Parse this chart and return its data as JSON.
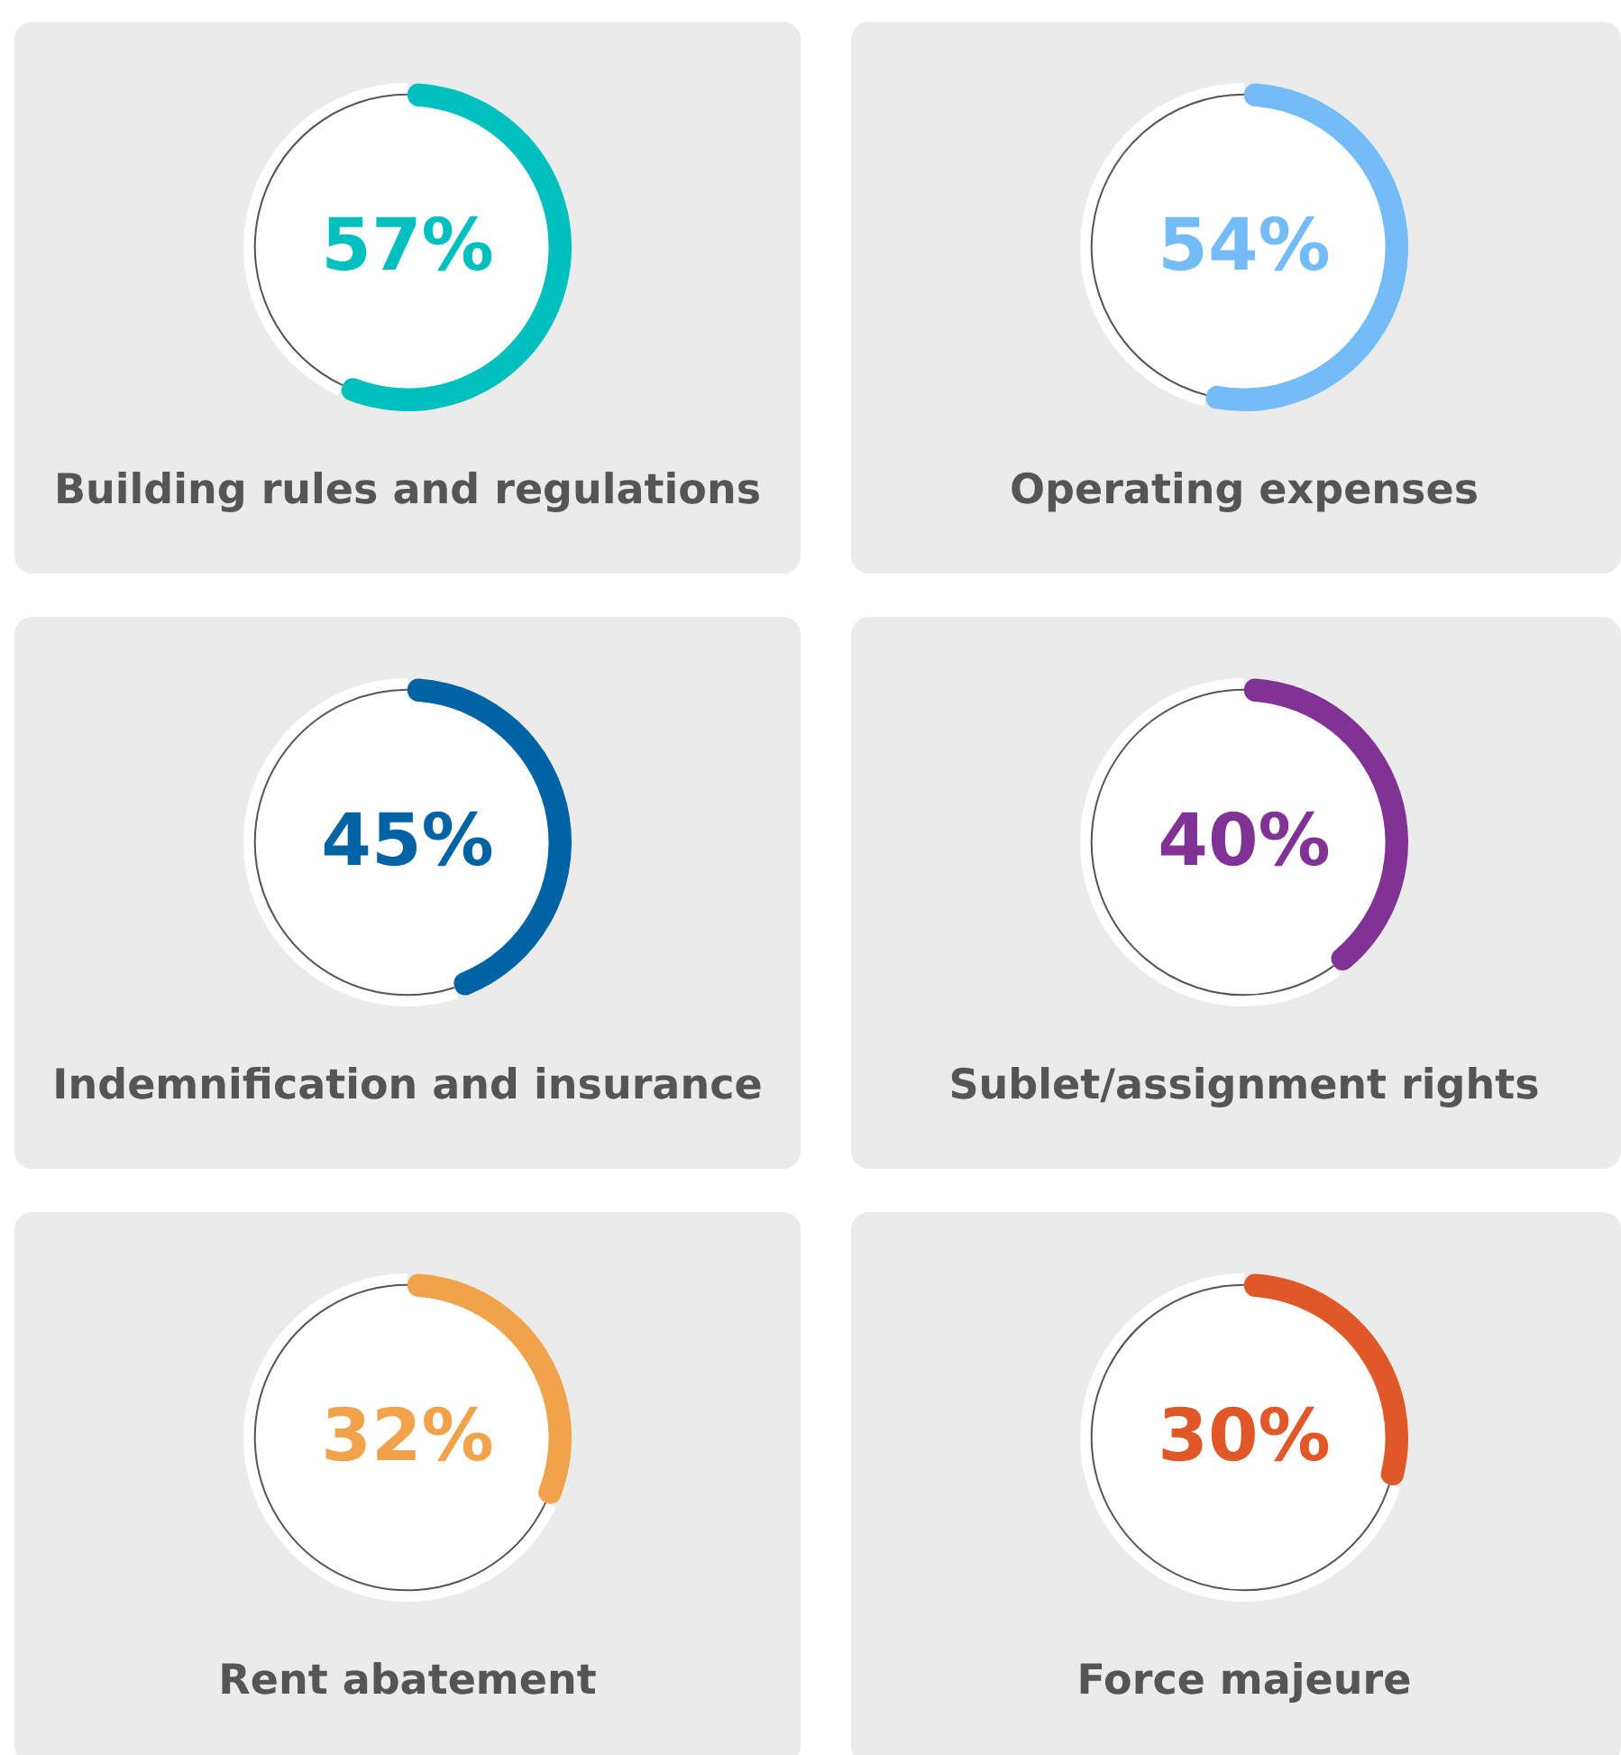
{
  "chart_data": [
    {
      "type": "donut",
      "title": "Building rules and regulations",
      "categories": [
        null,
        null
      ],
      "values": [
        57,
        43
      ],
      "colors": [
        "#00bfbf",
        "#ffffff"
      ],
      "value_labels": [
        "57%",
        null
      ]
    },
    {
      "type": "donut",
      "title": "Operating expenses",
      "categories": [
        null,
        null
      ],
      "values": [
        54,
        46
      ],
      "colors": [
        "#74bcf7",
        "#ffffff"
      ],
      "value_labels": [
        "54%",
        null
      ]
    },
    {
      "type": "donut",
      "title": "Indemnification and insurance",
      "categories": [
        null,
        null
      ],
      "values": [
        45,
        55
      ],
      "colors": [
        "#0063a4",
        "#ffffff"
      ],
      "value_labels": [
        "45%",
        null
      ]
    },
    {
      "type": "donut",
      "title": "Sublet/assignment rights",
      "categories": [
        null,
        null
      ],
      "values": [
        40,
        60
      ],
      "colors": [
        "#803394",
        "#ffffff"
      ],
      "value_labels": [
        "40%",
        null
      ]
    },
    {
      "type": "donut",
      "title": "Rent abatement",
      "categories": [
        null,
        null
      ],
      "values": [
        32,
        68
      ],
      "colors": [
        "#f0a34a",
        "#ffffff"
      ],
      "value_labels": [
        "32%",
        null
      ]
    },
    {
      "type": "donut",
      "title": "Force majeure",
      "categories": [
        null,
        null
      ],
      "values": [
        30,
        70
      ],
      "colors": [
        "#e05828",
        "#ffffff"
      ],
      "value_labels": [
        "30%",
        null
      ]
    }
  ]
}
